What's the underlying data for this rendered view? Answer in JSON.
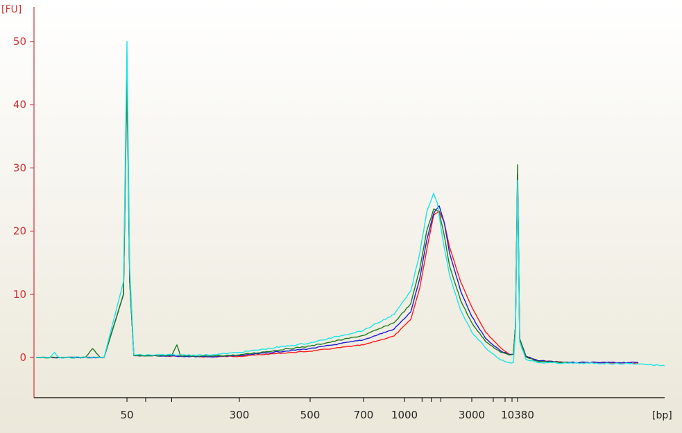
{
  "chart_data": {
    "type": "line",
    "title": "",
    "xlabel": "[bp]",
    "ylabel": "[FU]",
    "xscale": "electropherogram (non-linear)",
    "ylim": [
      -6,
      55
    ],
    "grid": false,
    "legend": "none",
    "x_ticks_labeled": [
      "50",
      "300",
      "500",
      "700",
      "1000",
      "3000",
      "10380"
    ],
    "y_ticks": [
      0,
      10,
      20,
      30,
      40,
      50
    ],
    "y_tick_labels": [
      "0",
      "10",
      "20",
      "30",
      "40",
      "50"
    ],
    "series": [
      {
        "color": "#ff1a1a",
        "x": [
          22,
          35,
          45,
          49,
          50,
          51,
          53,
          58,
          80,
          150,
          300,
          500,
          700,
          900,
          1100,
          1300,
          1450,
          1600,
          1750,
          1900,
          2100,
          2500,
          3000,
          4000,
          6000,
          8000,
          9500,
          10000,
          10380,
          10700,
          11500,
          13000,
          16000,
          20000
        ],
        "y": [
          0,
          0,
          0,
          10,
          46,
          12,
          0.3,
          0.3,
          0.2,
          0.1,
          0.2,
          1.0,
          2.0,
          3.4,
          6.0,
          11.0,
          17.0,
          22.5,
          23.2,
          21.5,
          17.5,
          12.0,
          8.0,
          4.0,
          1.5,
          0.5,
          0.5,
          5.0,
          29.0,
          3.0,
          0.2,
          -0.5,
          -0.8,
          -0.9
        ]
      },
      {
        "color": "#1a1ad6",
        "x": [
          22,
          35,
          45,
          49,
          50,
          51,
          53,
          58,
          80,
          150,
          300,
          500,
          700,
          900,
          1100,
          1300,
          1450,
          1600,
          1750,
          1900,
          2100,
          2500,
          3000,
          4000,
          6000,
          8000,
          9500,
          10000,
          10380,
          10700,
          11500,
          13000,
          16000,
          20000
        ],
        "y": [
          0,
          0,
          0,
          10,
          45,
          12,
          0.3,
          0.3,
          0.2,
          0.1,
          0.3,
          1.4,
          2.8,
          4.5,
          7.2,
          12.5,
          18.5,
          22.8,
          24.0,
          21.5,
          16.5,
          10.5,
          6.5,
          3.0,
          1.0,
          0.5,
          0.5,
          5.0,
          29.0,
          3.0,
          0.2,
          -0.5,
          -0.8,
          -0.8
        ]
      },
      {
        "color": "#1f7a1f",
        "x": [
          22,
          35,
          40,
          42,
          44,
          45,
          49,
          50,
          51,
          53,
          58,
          75,
          78,
          80,
          85,
          150,
          300,
          500,
          700,
          900,
          1100,
          1300,
          1450,
          1600,
          1750,
          1900,
          2100,
          2500,
          3000,
          4000,
          6000,
          8000,
          9500,
          10000,
          10380,
          10700,
          11500,
          13000,
          16000
        ],
        "y": [
          0,
          0,
          0,
          1.4,
          0,
          0,
          10,
          44,
          12,
          0.3,
          0.3,
          0.3,
          2.0,
          0.3,
          0.2,
          0.2,
          0.4,
          1.8,
          3.5,
          5.5,
          8.5,
          14.0,
          20.0,
          23.5,
          23.0,
          19.5,
          14.5,
          9.0,
          5.5,
          2.5,
          0.8,
          0.4,
          0.5,
          5.0,
          30.5,
          3.0,
          0.1,
          -0.6,
          -0.8
        ]
      },
      {
        "color": "#19e6e6",
        "x": [
          22,
          28,
          30,
          32,
          35,
          45,
          49,
          50,
          51,
          53,
          58,
          80,
          150,
          300,
          500,
          700,
          900,
          1100,
          1300,
          1450,
          1600,
          1700,
          1850,
          2100,
          2500,
          3000,
          4000,
          6000,
          8000,
          9500,
          10000,
          10380,
          10700,
          11500,
          13000,
          16000,
          20000,
          25000
        ],
        "y": [
          0,
          0,
          0.8,
          0,
          0,
          0,
          12,
          50,
          14,
          0.4,
          0.4,
          0.4,
          0.4,
          0.8,
          2.3,
          4.3,
          6.8,
          10.5,
          16.5,
          23.0,
          26.0,
          24.5,
          19.0,
          13.0,
          7.5,
          4.0,
          1.5,
          -0.4,
          -0.8,
          -0.8,
          4.0,
          28.0,
          2.5,
          -0.3,
          -0.8,
          -0.9,
          -1.0,
          -1.3
        ]
      }
    ]
  }
}
